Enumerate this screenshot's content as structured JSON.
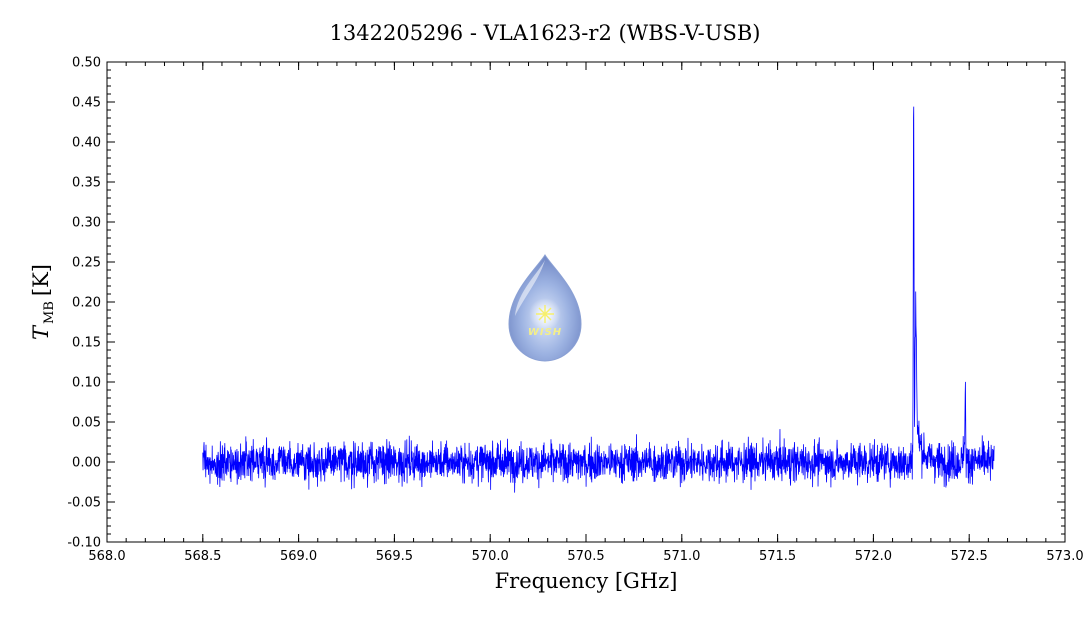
{
  "chart_data": {
    "type": "line",
    "title": "1342205296 - VLA1623-r2 (WBS-V-USB)",
    "xlabel": "Frequency [GHz]",
    "ylabel_main": "T",
    "ylabel_sub": "MB",
    "ylabel_unit": "[K]",
    "xlim": [
      568.0,
      573.0
    ],
    "ylim": [
      -0.1,
      0.5
    ],
    "x_ticks": [
      "568.0",
      "568.5",
      "569.0",
      "569.5",
      "570.0",
      "570.5",
      "571.0",
      "571.5",
      "572.0",
      "572.5",
      "573.0"
    ],
    "y_ticks": [
      "-0.10",
      "-0.05",
      "0.00",
      "0.05",
      "0.10",
      "0.15",
      "0.20",
      "0.25",
      "0.30",
      "0.35",
      "0.40",
      "0.45",
      "0.50"
    ],
    "series": [
      {
        "color": "#0000ff",
        "x_range": [
          568.5,
          572.63
        ],
        "noise_rms": 0.012,
        "features": [
          {
            "center": 572.21,
            "peak": 0.46
          },
          {
            "center": 572.22,
            "peak": 0.17
          },
          {
            "center": 572.25,
            "peak": 0.05
          },
          {
            "center": 572.48,
            "peak": 0.09
          }
        ]
      }
    ],
    "grid": false,
    "legend": "none"
  },
  "logo": {
    "text": "WISH"
  }
}
